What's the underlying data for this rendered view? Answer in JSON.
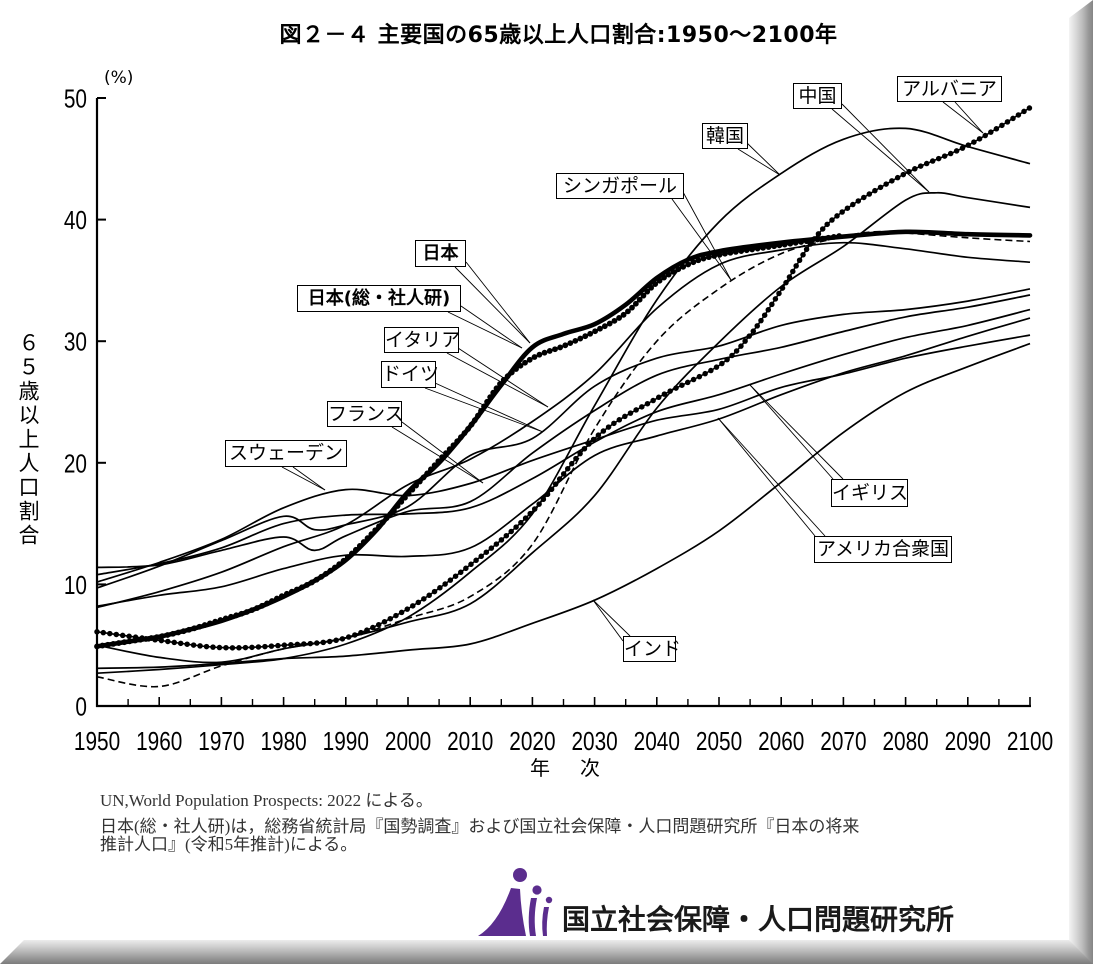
{
  "page": {
    "title": "図２－４ 主要国の65歳以上人口割合:1950～2100年",
    "notes": {
      "source": "UN,World Population Prospects: 2022 による。",
      "japan_line1": "日本(総・社人研)は，総務省統計局『国勢調査』および国立社会保障・人口問題研究所『日本の将来",
      "japan_line2": "推計人口』(令和5年推計)による。"
    },
    "footer": {
      "org_name": "国立社会保障・人口問題研究所",
      "logo_icon": "ipss-logo-icon",
      "logo_color": "#5b2d8e"
    }
  },
  "chart_data": {
    "type": "line",
    "title": "図２－４ 主要国の65歳以上人口割合:1950～2100年",
    "xlabel": "年　次",
    "ylabel": "６５歳以上人口割合",
    "yunit": "(%)",
    "xlim": [
      1950,
      2100
    ],
    "ylim": [
      0,
      50
    ],
    "xticks": [
      1950,
      1960,
      1970,
      1980,
      1990,
      2000,
      2010,
      2020,
      2030,
      2040,
      2050,
      2060,
      2070,
      2080,
      2090,
      2100
    ],
    "yticks": [
      0,
      10,
      20,
      30,
      40,
      50
    ],
    "grid": false,
    "legend": "inline-callout-labels",
    "series": [
      {
        "name": "インド",
        "line_style": "solid",
        "points": [
          [
            1950,
            3.1
          ],
          [
            1960,
            3.2
          ],
          [
            1970,
            3.5
          ],
          [
            1980,
            3.9
          ],
          [
            1990,
            4.1
          ],
          [
            2000,
            4.6
          ],
          [
            2010,
            5.1
          ],
          [
            2020,
            6.8
          ],
          [
            2030,
            8.7
          ],
          [
            2040,
            11.3
          ],
          [
            2050,
            14.4
          ],
          [
            2060,
            18.4
          ],
          [
            2070,
            22.5
          ],
          [
            2080,
            25.8
          ],
          [
            2090,
            27.9
          ],
          [
            2100,
            29.8
          ]
        ]
      },
      {
        "name": "アメリカ合衆国",
        "line_style": "solid",
        "points": [
          [
            1950,
            8.2
          ],
          [
            1960,
            9.1
          ],
          [
            1970,
            9.8
          ],
          [
            1980,
            11.3
          ],
          [
            1990,
            12.4
          ],
          [
            2000,
            12.3
          ],
          [
            2010,
            13.0
          ],
          [
            2020,
            16.6
          ],
          [
            2030,
            20.6
          ],
          [
            2040,
            22.2
          ],
          [
            2050,
            23.6
          ],
          [
            2060,
            25.6
          ],
          [
            2070,
            27.4
          ],
          [
            2080,
            28.8
          ],
          [
            2090,
            30.4
          ],
          [
            2100,
            31.9
          ]
        ]
      },
      {
        "name": "イギリス",
        "line_style": "solid",
        "points": [
          [
            1950,
            10.8
          ],
          [
            1960,
            11.7
          ],
          [
            1970,
            13.0
          ],
          [
            1980,
            15.0
          ],
          [
            1990,
            15.7
          ],
          [
            2000,
            15.8
          ],
          [
            2010,
            16.3
          ],
          [
            2020,
            18.7
          ],
          [
            2030,
            21.7
          ],
          [
            2040,
            24.2
          ],
          [
            2050,
            25.6
          ],
          [
            2060,
            27.3
          ],
          [
            2070,
            28.9
          ],
          [
            2080,
            30.3
          ],
          [
            2090,
            31.3
          ],
          [
            2100,
            32.6
          ]
        ]
      },
      {
        "name": "スウェーデン",
        "line_style": "solid",
        "points": [
          [
            1950,
            10.2
          ],
          [
            1960,
            11.8
          ],
          [
            1970,
            13.7
          ],
          [
            1980,
            16.3
          ],
          [
            1990,
            17.8
          ],
          [
            2000,
            17.3
          ],
          [
            2010,
            18.3
          ],
          [
            2020,
            20.2
          ],
          [
            2030,
            21.9
          ],
          [
            2040,
            23.5
          ],
          [
            2050,
            24.4
          ],
          [
            2060,
            26.2
          ],
          [
            2070,
            27.3
          ],
          [
            2080,
            28.6
          ],
          [
            2090,
            29.6
          ],
          [
            2100,
            30.5
          ]
        ]
      },
      {
        "name": "フランス",
        "line_style": "solid",
        "points": [
          [
            1950,
            11.4
          ],
          [
            1960,
            11.6
          ],
          [
            1970,
            12.8
          ],
          [
            1980,
            13.9
          ],
          [
            1985,
            12.8
          ],
          [
            1990,
            14.0
          ],
          [
            2000,
            16.0
          ],
          [
            2010,
            16.8
          ],
          [
            2020,
            20.8
          ],
          [
            2030,
            24.3
          ],
          [
            2040,
            27.2
          ],
          [
            2050,
            28.5
          ],
          [
            2060,
            29.5
          ],
          [
            2070,
            30.8
          ],
          [
            2080,
            32.0
          ],
          [
            2090,
            32.8
          ],
          [
            2100,
            33.8
          ]
        ]
      },
      {
        "name": "ドイツ",
        "line_style": "solid",
        "points": [
          [
            1950,
            9.7
          ],
          [
            1960,
            11.5
          ],
          [
            1970,
            13.6
          ],
          [
            1980,
            15.6
          ],
          [
            1985,
            14.5
          ],
          [
            1990,
            14.9
          ],
          [
            2000,
            16.4
          ],
          [
            2010,
            20.6
          ],
          [
            2020,
            22.0
          ],
          [
            2030,
            26.3
          ],
          [
            2040,
            28.6
          ],
          [
            2050,
            29.6
          ],
          [
            2060,
            31.3
          ],
          [
            2070,
            32.2
          ],
          [
            2080,
            32.6
          ],
          [
            2090,
            33.3
          ],
          [
            2100,
            34.3
          ]
        ]
      },
      {
        "name": "イタリア",
        "line_style": "solid",
        "points": [
          [
            1950,
            8.1
          ],
          [
            1960,
            9.4
          ],
          [
            1970,
            11.0
          ],
          [
            1980,
            13.1
          ],
          [
            1990,
            14.9
          ],
          [
            2000,
            18.2
          ],
          [
            2010,
            20.3
          ],
          [
            2020,
            23.4
          ],
          [
            2030,
            27.3
          ],
          [
            2040,
            32.7
          ],
          [
            2050,
            36.3
          ],
          [
            2060,
            37.5
          ],
          [
            2070,
            38.1
          ],
          [
            2080,
            37.6
          ],
          [
            2090,
            36.9
          ],
          [
            2100,
            36.5
          ]
        ]
      },
      {
        "name": "中国",
        "line_style": "solid",
        "points": [
          [
            1950,
            5.0
          ],
          [
            1960,
            4.0
          ],
          [
            1970,
            3.6
          ],
          [
            1980,
            4.7
          ],
          [
            1990,
            5.6
          ],
          [
            2000,
            6.9
          ],
          [
            2010,
            8.4
          ],
          [
            2020,
            12.6
          ],
          [
            2030,
            17.3
          ],
          [
            2040,
            24.5
          ],
          [
            2050,
            29.9
          ],
          [
            2060,
            34.5
          ],
          [
            2070,
            37.8
          ],
          [
            2080,
            41.6
          ],
          [
            2085,
            42.2
          ],
          [
            2090,
            41.8
          ],
          [
            2100,
            41.0
          ]
        ]
      },
      {
        "name": "韓国",
        "line_style": "solid",
        "points": [
          [
            1950,
            2.7
          ],
          [
            1960,
            3.0
          ],
          [
            1970,
            3.4
          ],
          [
            1980,
            3.9
          ],
          [
            1990,
            5.1
          ],
          [
            2000,
            7.3
          ],
          [
            2010,
            11.0
          ],
          [
            2020,
            15.8
          ],
          [
            2030,
            24.7
          ],
          [
            2040,
            33.4
          ],
          [
            2050,
            39.8
          ],
          [
            2060,
            43.8
          ],
          [
            2070,
            46.6
          ],
          [
            2080,
            47.5
          ],
          [
            2090,
            46.0
          ],
          [
            2100,
            44.6
          ]
        ]
      },
      {
        "name": "シンガポール",
        "line_style": "dashed",
        "points": [
          [
            1950,
            2.4
          ],
          [
            1960,
            1.6
          ],
          [
            1970,
            3.3
          ],
          [
            1980,
            4.7
          ],
          [
            1990,
            5.6
          ],
          [
            2000,
            7.2
          ],
          [
            2010,
            9.0
          ],
          [
            2020,
            13.3
          ],
          [
            2030,
            22.8
          ],
          [
            2040,
            30.0
          ],
          [
            2050,
            34.3
          ],
          [
            2060,
            37.2
          ],
          [
            2070,
            38.6
          ],
          [
            2075,
            39.0
          ],
          [
            2080,
            38.9
          ],
          [
            2090,
            38.5
          ],
          [
            2100,
            38.2
          ]
        ]
      },
      {
        "name": "アルバニア",
        "line_style": "dotted",
        "points": [
          [
            1950,
            6.1
          ],
          [
            1960,
            5.4
          ],
          [
            1970,
            4.8
          ],
          [
            1980,
            5.0
          ],
          [
            1990,
            5.6
          ],
          [
            2000,
            8.0
          ],
          [
            2010,
            11.6
          ],
          [
            2020,
            16.0
          ],
          [
            2030,
            22.0
          ],
          [
            2040,
            25.3
          ],
          [
            2050,
            28.0
          ],
          [
            2055,
            30.5
          ],
          [
            2060,
            34.2
          ],
          [
            2065,
            38.2
          ],
          [
            2070,
            40.7
          ],
          [
            2080,
            43.8
          ],
          [
            2090,
            46.1
          ],
          [
            2100,
            49.2
          ]
        ]
      },
      {
        "name": "日本",
        "line_style": "bold",
        "points": [
          [
            1950,
            4.9
          ],
          [
            1955,
            5.3
          ],
          [
            1960,
            5.7
          ],
          [
            1965,
            6.3
          ],
          [
            1970,
            7.0
          ],
          [
            1975,
            7.9
          ],
          [
            1980,
            9.0
          ],
          [
            1985,
            10.3
          ],
          [
            1990,
            12.0
          ],
          [
            1995,
            14.5
          ],
          [
            2000,
            17.6
          ],
          [
            2005,
            20.0
          ],
          [
            2010,
            23.0
          ],
          [
            2015,
            26.4
          ],
          [
            2020,
            29.5
          ],
          [
            2025,
            30.6
          ],
          [
            2030,
            31.4
          ],
          [
            2035,
            33.0
          ],
          [
            2040,
            35.2
          ],
          [
            2045,
            36.7
          ],
          [
            2050,
            37.4
          ],
          [
            2060,
            38.1
          ],
          [
            2070,
            38.6
          ],
          [
            2080,
            39.0
          ],
          [
            2090,
            38.8
          ],
          [
            2100,
            38.7
          ]
        ]
      },
      {
        "name": "日本(総・社人研)",
        "line_style": "bold-dotted",
        "points": [
          [
            1950,
            4.9
          ],
          [
            1955,
            5.3
          ],
          [
            1960,
            5.7
          ],
          [
            1965,
            6.3
          ],
          [
            1970,
            7.1
          ],
          [
            1975,
            7.9
          ],
          [
            1980,
            9.1
          ],
          [
            1985,
            10.3
          ],
          [
            1990,
            12.1
          ],
          [
            1995,
            14.6
          ],
          [
            2000,
            17.4
          ],
          [
            2005,
            20.2
          ],
          [
            2010,
            23.0
          ],
          [
            2015,
            26.6
          ],
          [
            2020,
            28.6
          ],
          [
            2025,
            29.6
          ],
          [
            2030,
            30.8
          ],
          [
            2035,
            32.3
          ],
          [
            2040,
            34.8
          ],
          [
            2045,
            36.3
          ],
          [
            2050,
            37.1
          ],
          [
            2060,
            37.9
          ],
          [
            2070,
            38.7
          ]
        ]
      }
    ],
    "annotations": [
      {
        "text": "中国",
        "series": "中国"
      },
      {
        "text": "アルバニア",
        "series": "アルバニア"
      },
      {
        "text": "韓国",
        "series": "韓国"
      },
      {
        "text": "シンガポール",
        "series": "シンガポール"
      },
      {
        "text": "日本",
        "series": "日本"
      },
      {
        "text": "日本(総・社人研)",
        "series": "日本(総・社人研)"
      },
      {
        "text": "イタリア",
        "series": "イタリア"
      },
      {
        "text": "ドイツ",
        "series": "ドイツ"
      },
      {
        "text": "フランス",
        "series": "フランス"
      },
      {
        "text": "スウェーデン",
        "series": "スウェーデン"
      },
      {
        "text": "イギリス",
        "series": "イギリス"
      },
      {
        "text": "アメリカ合衆国",
        "series": "アメリカ合衆国"
      },
      {
        "text": "インド",
        "series": "インド"
      }
    ]
  }
}
